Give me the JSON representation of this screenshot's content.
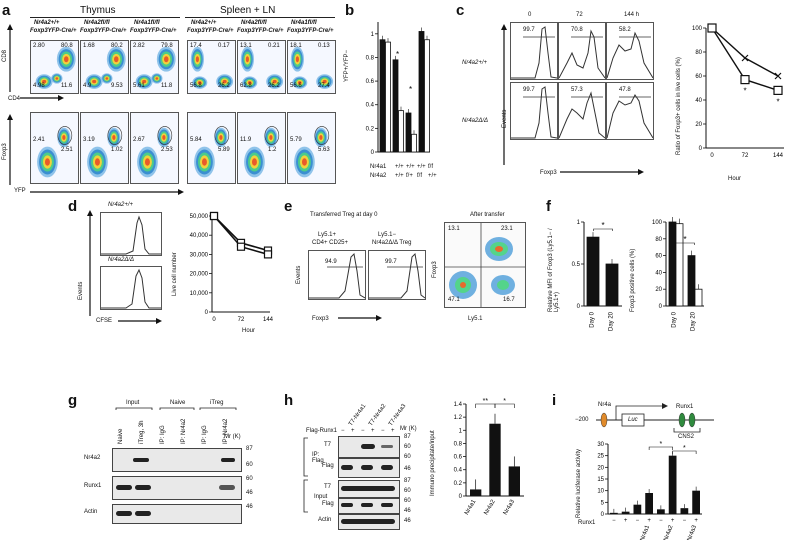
{
  "panels": {
    "a": {
      "label": "a",
      "groups": [
        "Thymus",
        "Spleen + LN"
      ],
      "genotypes": [
        {
          "l1": "Nr4a2+/+",
          "l2": "Foxp3YFP-Cre/+"
        },
        {
          "l1": "Nr4a2fl/fl",
          "l2": "Foxp3YFP-Cre/+"
        },
        {
          "l1": "Nr4a1fl/fl",
          "l2": "Foxp3YFP-Cre/+"
        },
        {
          "l1": "Nr4a2+/+",
          "l2": "Foxp3YFP-Cre/+"
        },
        {
          "l1": "Nr4a2fl/fl",
          "l2": "Foxp3YFP-Cre/+"
        },
        {
          "l1": "Nr4a1fl/fl",
          "l2": "Foxp3YFP-Cre/+"
        }
      ],
      "row1_axes": {
        "y": "CD8",
        "x": "CD4"
      },
      "row2_axes": {
        "y": "Foxp3",
        "x": "YFP"
      },
      "row1_values": [
        [
          "2.80",
          "80.8",
          "4.98",
          "11.6"
        ],
        [
          "1.68",
          "80.2",
          "4.9",
          "9.53"
        ],
        [
          "2.82",
          "79.8",
          "5.61",
          "11.8"
        ],
        [
          "17.4",
          "0.17",
          "56.8",
          "26.2"
        ],
        [
          "13.1",
          "0.21",
          "62.8",
          "26.2"
        ],
        [
          "18.1",
          "0.13",
          "56.6",
          "27.4"
        ]
      ],
      "row2_values": [
        [
          "2.41",
          "2.51"
        ],
        [
          "3.19",
          "1.02"
        ],
        [
          "2.67",
          "2.53"
        ],
        [
          "5.84",
          "5.89"
        ],
        [
          "11.9",
          "1.2"
        ],
        [
          "5.79",
          "5.63"
        ]
      ],
      "ticks": [
        "10⁰",
        "10¹",
        "10²",
        "10³",
        "10⁴"
      ]
    },
    "b": {
      "label": "b",
      "ylabel": "YFP+/YFP−",
      "yticks": [
        "0",
        "0.2",
        "0.4",
        "0.6",
        "0.8",
        "1"
      ],
      "row_labels": [
        "Nr4a1",
        "Nr4a2"
      ],
      "cols": [
        {
          "nr4a1": "+/+",
          "nr4a2": "+/+"
        },
        {
          "nr4a1": "+/+",
          "nr4a2": "f/+"
        },
        {
          "nr4a1": "+/+",
          "nr4a2": "f/f"
        },
        {
          "nr4a1": "f/f",
          "nr4a2": "+/+"
        }
      ],
      "star": "*"
    },
    "c": {
      "label": "c",
      "times": [
        "0",
        "72",
        "144 h"
      ],
      "rows": [
        "Nr4a2+/+",
        "Nr4a2Δ/Δ"
      ],
      "values_top": [
        "99.7",
        "70.8",
        "58.2"
      ],
      "values_bottom": [
        "99.7",
        "57.3",
        "47.8"
      ],
      "xlabel": "Foxp3",
      "ylabel": "Events",
      "line_ylabel": "Ratio of Foxp3+ cells in live cells (%)",
      "line_yticks": [
        "0",
        "20",
        "40",
        "60",
        "80",
        "100"
      ],
      "line_xticks": [
        "0",
        "72",
        "144"
      ],
      "line_xlabel": "Hour",
      "star": "*"
    },
    "d": {
      "label": "d",
      "rows": [
        "Nr4a2+/+",
        "Nr4a2Δ/Δ"
      ],
      "xlabel": "CFSE",
      "ylabel": "Events",
      "line_ylabel": "Live cell number",
      "line_yticks": [
        "0",
        "10,000",
        "20,000",
        "30,000",
        "40,000",
        "50,000"
      ],
      "line_xticks": [
        "0",
        "72",
        "144"
      ],
      "line_xlabel": "Hour"
    },
    "e": {
      "label": "e",
      "title_left": "Transferred Treg at day 0",
      "col1": [
        "Ly5.1+",
        "CD4+ CD25+"
      ],
      "col2": [
        "Ly5.1−",
        "Nr4a2Δ/Δ Treg"
      ],
      "val1": "94.9",
      "val2": "99.7",
      "xlabel": "Foxp3",
      "ylabel": "Events",
      "title_right": "After transfer",
      "quad": [
        "13.1",
        "23.1",
        "47.1",
        "16.7"
      ],
      "q_x": "Ly5.1",
      "q_y": "Foxp3"
    },
    "f": {
      "label": "f",
      "ylabel1": "Relative MFI of Foxp3 (Ly5.1− / Ly5.1+)",
      "yticks1": [
        "0",
        "0.5",
        "1"
      ],
      "ylabel2": "Foxp3 positive cells (%)",
      "yticks2": [
        "0",
        "20",
        "40",
        "60",
        "80",
        "100"
      ],
      "xcats": [
        "Day 0",
        "Day 20"
      ],
      "star": "*"
    },
    "g": {
      "label": "g",
      "headers": [
        "Input",
        "Naive",
        "iTreg"
      ],
      "lanes": [
        "Naive",
        "iTreg, 3h",
        "IP: IgG",
        "IP: Nr4a2",
        "IP: IgG",
        "IP: Nr4a2"
      ],
      "rows": [
        "Nr4a2",
        "Runx1",
        "Actin"
      ],
      "mr_label": "Mr (K)",
      "mr": [
        "87",
        "60",
        "60",
        "46",
        "46"
      ]
    },
    "h": {
      "label": "h",
      "lanes": [
        "T7-Nr4a1",
        "T7-Nr4a2",
        "T7-Nr4a3"
      ],
      "flag_runx1": "Flag-Runx1",
      "signs": [
        "−",
        "+",
        "−",
        "+",
        "−",
        "+"
      ],
      "mr_label": "Mr (K)",
      "group1": "IP: Flag",
      "group2": "Input",
      "rows": [
        "T7",
        "Flag",
        "T7",
        "Flag",
        "Actin"
      ],
      "mr": [
        "87",
        "60",
        "60",
        "46",
        "87",
        "60",
        "60",
        "46",
        "46"
      ],
      "bar_ylabel": "Immuno precipitate/input",
      "bar_yticks": [
        "0",
        "0.2",
        "0.4",
        "0.6",
        "0.8",
        "1",
        "1.2",
        "1.4"
      ],
      "bar_cats": [
        "Nr4a1",
        "Nr4a2",
        "Nr4a3"
      ],
      "bar_values": [
        0.1,
        1.1,
        0.45
      ],
      "stars": [
        "**",
        "*"
      ]
    },
    "i": {
      "label": "i",
      "promoter": "−200",
      "site1": "Nr4a",
      "gene": "Luc",
      "site2": "Runx1",
      "cns": "CNS2",
      "ylabel": "Relative luciferase activity",
      "yticks": [
        "0",
        "5",
        "10",
        "15",
        "20",
        "25",
        "30"
      ],
      "runx_label": "Runx1",
      "runx_signs": [
        "−",
        "+",
        "−",
        "+",
        "−",
        "+",
        "−",
        "+"
      ],
      "groups": [
        "+Nr4a1",
        "+Nr4a2",
        "+Nr4a3"
      ],
      "values": [
        0.5,
        1.0,
        4.0,
        9.0,
        2.0,
        25.0,
        2.5,
        10.0
      ],
      "stars": [
        "*",
        "*"
      ]
    }
  },
  "chart_data": [
    {
      "type": "bar",
      "title": "",
      "ylabel": "YFP+/YFP−",
      "categories": [
        "Nr4a1 +/+ Nr4a2 +/+",
        "Nr4a1 +/+ Nr4a2 f/+",
        "Nr4a1 +/+ Nr4a2 f/f",
        "Nr4a1 f/f Nr4a2 +/+"
      ],
      "series": [
        {
          "values": [
            0.95,
            0.78,
            0.33,
            1.02
          ]
        },
        {
          "values": [
            0.93,
            0.35,
            0.15,
            0.95
          ]
        }
      ],
      "ylim": [
        0,
        1.1
      ]
    },
    {
      "type": "line",
      "ylabel": "Ratio of Foxp3+ cells in live cells (%)",
      "xlabel": "Hour",
      "x": [
        0,
        72,
        144
      ],
      "series": [
        {
          "values": [
            100,
            75,
            60
          ]
        },
        {
          "values": [
            100,
            57,
            48
          ]
        }
      ],
      "ylim": [
        0,
        100
      ]
    },
    {
      "type": "line",
      "ylabel": "Live cell number",
      "xlabel": "Hour",
      "x": [
        0,
        72,
        144
      ],
      "series": [
        {
          "values": [
            50000,
            36000,
            32000
          ]
        },
        {
          "values": [
            50000,
            34000,
            30000
          ]
        }
      ],
      "ylim": [
        0,
        50000
      ]
    },
    {
      "type": "bar",
      "ylabel": "Relative MFI of Foxp3 (Ly5.1− / Ly5.1+)",
      "categories": [
        "Day 0",
        "Day 20"
      ],
      "values": [
        0.82,
        0.5
      ],
      "ylim": [
        0,
        1
      ]
    },
    {
      "type": "bar",
      "ylabel": "Foxp3 positive cells (%)",
      "categories": [
        "Day 0",
        "Day 20"
      ],
      "series": [
        {
          "values": [
            100,
            60
          ]
        },
        {
          "values": [
            98,
            20
          ]
        }
      ],
      "ylim": [
        0,
        100
      ]
    },
    {
      "type": "bar",
      "ylabel": "Immuno precipitate/input",
      "categories": [
        "Nr4a1",
        "Nr4a2",
        "Nr4a3"
      ],
      "values": [
        0.1,
        1.1,
        0.45
      ],
      "ylim": [
        0,
        1.4
      ]
    },
    {
      "type": "bar",
      "ylabel": "Relative luciferase activity",
      "categories": [
        "−",
        "+",
        "−",
        "+",
        "−",
        "+",
        "−",
        "+"
      ],
      "values": [
        0.5,
        1.0,
        4.0,
        9.0,
        2.0,
        25.0,
        2.5,
        10.0
      ],
      "ylim": [
        0,
        30
      ]
    }
  ]
}
